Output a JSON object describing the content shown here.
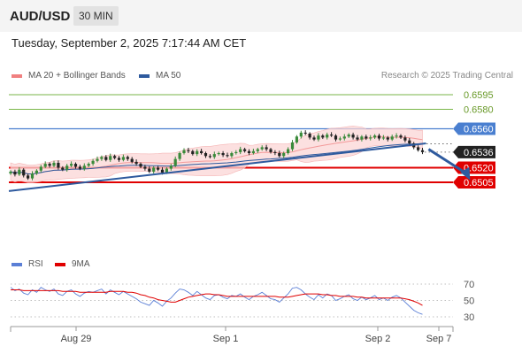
{
  "header": {
    "pair": "AUD/USD",
    "timeframe": "30 MIN"
  },
  "datetime": "Tuesday, September 2, 2025 7:17:44 AM CET",
  "legend": {
    "ma_bb": "MA 20 + Bollinger Bands",
    "ma50": "MA 50",
    "rsi": "RSI",
    "rsi_ma": "9MA"
  },
  "credit": "Research © 2025 Trading Central",
  "colors": {
    "bollinger": "#f08080",
    "ma50": "#2e5a9e",
    "rsi": "#5b7fd6",
    "rsi_ma": "#e00000",
    "green_level": "#7ab648",
    "blue_level": "#4a7fd0",
    "red_level": "#e00000",
    "candle_up": "#3a8a3a",
    "candle_down": "#222222"
  },
  "chart_data": [
    {
      "type": "candlestick",
      "x_ticks": [
        "Aug 29",
        "Sep 1",
        "Sep 2",
        "Sep 7"
      ],
      "ylim": [
        0.6485,
        0.6605
      ],
      "levels": [
        {
          "value": 0.6595,
          "label": "0.6595",
          "kind": "resistance"
        },
        {
          "value": 0.658,
          "label": "0.6580",
          "kind": "resistance"
        },
        {
          "value": 0.656,
          "label": "0.6560",
          "kind": "key"
        },
        {
          "value": 0.6536,
          "label": "0.6536",
          "kind": "last"
        },
        {
          "value": 0.652,
          "label": "0.6520",
          "kind": "support"
        },
        {
          "value": 0.6505,
          "label": "0.6505",
          "kind": "support"
        }
      ],
      "trendline": {
        "from": [
          0,
          0.6496
        ],
        "to": [
          95,
          0.6545
        ]
      },
      "projection": {
        "from": [
          96,
          0.6539
        ],
        "to": [
          106,
          0.6507
        ]
      },
      "close": [
        0.6516,
        0.6513,
        0.6518,
        0.6512,
        0.6509,
        0.6514,
        0.6517,
        0.6521,
        0.6524,
        0.6522,
        0.6525,
        0.652,
        0.6518,
        0.6522,
        0.6524,
        0.6521,
        0.6519,
        0.6522,
        0.6524,
        0.6527,
        0.6529,
        0.6531,
        0.6528,
        0.6532,
        0.653,
        0.6528,
        0.6531,
        0.6529,
        0.6526,
        0.6524,
        0.6521,
        0.6519,
        0.6516,
        0.652,
        0.6518,
        0.6515,
        0.6519,
        0.6522,
        0.6529,
        0.6535,
        0.6538,
        0.6537,
        0.6534,
        0.6537,
        0.6535,
        0.6532,
        0.6531,
        0.6534,
        0.6535,
        0.6533,
        0.6532,
        0.6535,
        0.6536,
        0.6539,
        0.6537,
        0.6535,
        0.6537,
        0.6539,
        0.6541,
        0.6539,
        0.6536,
        0.6535,
        0.6532,
        0.6535,
        0.6539,
        0.6546,
        0.6552,
        0.6556,
        0.6555,
        0.6551,
        0.6549,
        0.6553,
        0.6551,
        0.6554,
        0.6553,
        0.6549,
        0.655,
        0.6552,
        0.6554,
        0.6551,
        0.6549,
        0.6552,
        0.655,
        0.6551,
        0.6553,
        0.655,
        0.6551,
        0.6549,
        0.6552,
        0.6553,
        0.6551,
        0.6548,
        0.6545,
        0.6541,
        0.6538,
        0.6536
      ]
    },
    {
      "type": "line",
      "title": "RSI",
      "ylim": [
        25,
        75
      ],
      "y_ticks": [
        70,
        50,
        30
      ],
      "series": [
        {
          "name": "RSI",
          "values": [
            66,
            62,
            64,
            59,
            57,
            63,
            60,
            66,
            63,
            61,
            64,
            58,
            56,
            61,
            63,
            58,
            55,
            59,
            61,
            60,
            62,
            64,
            58,
            63,
            60,
            57,
            61,
            58,
            55,
            52,
            48,
            46,
            44,
            50,
            47,
            43,
            49,
            53,
            59,
            64,
            63,
            60,
            56,
            61,
            57,
            53,
            51,
            56,
            57,
            54,
            52,
            56,
            55,
            58,
            54,
            51,
            55,
            57,
            60,
            56,
            52,
            51,
            48,
            53,
            58,
            65,
            66,
            63,
            58,
            54,
            51,
            57,
            53,
            58,
            56,
            50,
            52,
            55,
            57,
            52,
            50,
            54,
            51,
            53,
            56,
            51,
            53,
            50,
            54,
            56,
            53,
            48,
            43,
            38,
            35,
            33
          ]
        },
        {
          "name": "9MA",
          "values": [
            63,
            63,
            63,
            62,
            62,
            62,
            62,
            62,
            62,
            62,
            62,
            62,
            61,
            61,
            61,
            61,
            60,
            60,
            60,
            60,
            60,
            60,
            60,
            61,
            61,
            61,
            61,
            60,
            60,
            59,
            57,
            56,
            54,
            53,
            51,
            50,
            49,
            48,
            48,
            50,
            52,
            54,
            55,
            56,
            57,
            58,
            58,
            57,
            57,
            56,
            55,
            55,
            55,
            55,
            55,
            55,
            55,
            55,
            55,
            55,
            55,
            55,
            54,
            54,
            54,
            55,
            56,
            57,
            58,
            58,
            58,
            58,
            57,
            57,
            56,
            56,
            55,
            55,
            55,
            55,
            54,
            54,
            53,
            53,
            53,
            53,
            53,
            53,
            53,
            53,
            53,
            52,
            51,
            49,
            47,
            44
          ]
        }
      ]
    }
  ]
}
